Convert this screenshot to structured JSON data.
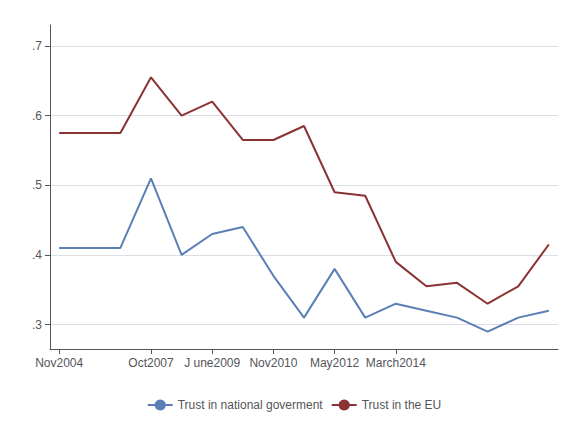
{
  "chart_data": {
    "type": "line",
    "x": [
      0,
      1,
      2,
      3,
      4,
      5,
      6,
      7,
      8,
      9,
      10,
      11,
      12,
      13,
      14,
      15,
      16
    ],
    "series": [
      {
        "name": "Trust in national goverment",
        "color": "#5b7fb5",
        "values": [
          0.41,
          0.41,
          0.41,
          0.51,
          0.4,
          0.43,
          0.44,
          0.37,
          0.31,
          0.38,
          0.31,
          0.33,
          0.32,
          0.31,
          0.29,
          0.31,
          0.32
        ]
      },
      {
        "name": "Trust in the EU",
        "color": "#8b3333",
        "values": [
          0.575,
          0.575,
          0.575,
          0.655,
          0.6,
          0.62,
          0.565,
          0.565,
          0.585,
          0.49,
          0.485,
          0.39,
          0.355,
          0.36,
          0.33,
          0.355,
          0.415
        ]
      }
    ],
    "xlim": [
      -0.3,
      16.3
    ],
    "xticks": [
      {
        "value": 0,
        "label": "Nov2004"
      },
      {
        "value": 3,
        "label": "Oct2007"
      },
      {
        "value": 5,
        "label": "J une2009"
      },
      {
        "value": 7,
        "label": "Nov2010"
      },
      {
        "value": 9,
        "label": "May2012"
      },
      {
        "value": 11,
        "label": "March2014"
      }
    ],
    "ylim": [
      0.265,
      0.73
    ],
    "yticks": [
      {
        "value": 0.3,
        "label": ".3"
      },
      {
        "value": 0.4,
        "label": ".4"
      },
      {
        "value": 0.5,
        "label": ".5"
      },
      {
        "value": 0.6,
        "label": ".6"
      },
      {
        "value": 0.7,
        "label": ".7"
      }
    ],
    "grid": true,
    "legend": "bottom"
  }
}
